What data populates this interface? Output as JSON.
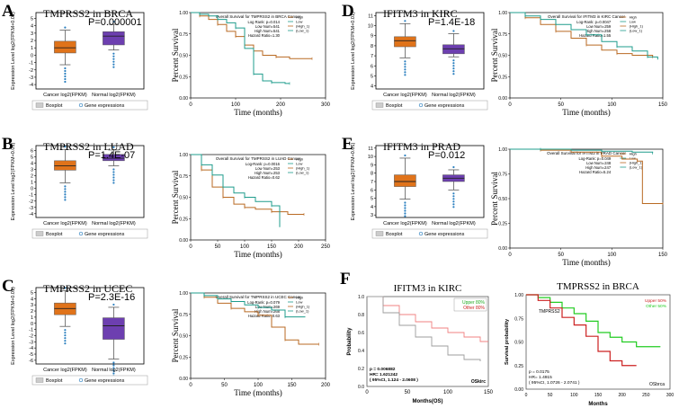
{
  "colors": {
    "cancer": "#e0731a",
    "normal": "#6d3fb0",
    "km_high": "#b96a23",
    "km_low": "#1f9c8c",
    "dot": "#2a7fbf",
    "probLow": "#f08080",
    "probHigh": "#9c9c9c",
    "kmRed": "#cc2020",
    "kmGreen": "#22cc22"
  },
  "panels": [
    {
      "letter": "A",
      "gene": "TMPRSS2",
      "tissue": "BRCA",
      "pvalue": "P=0.000001",
      "yticks": [
        -4,
        -3,
        -2,
        -1,
        0,
        1,
        2,
        3,
        4,
        5
      ],
      "ylim": [
        -4.6,
        5.8
      ],
      "cancer_box": {
        "q1": 0.3,
        "med": 1.0,
        "q3": 1.9,
        "lo": -1.3,
        "hi": 3.4
      },
      "normal_box": {
        "q1": 1.4,
        "med": 2.6,
        "q3": 3.2,
        "lo": 0.7,
        "hi": 4.2
      },
      "km": {
        "title": "Overall Survival for TMPRSS2 in BRCA Cancer",
        "stats": [
          "Log Rank: p=0.014",
          "Low Num=541",
          "High Num=541",
          "Hazard Ratio=1.30"
        ],
        "xticks": [
          0,
          100,
          200,
          300
        ],
        "xmax": 300,
        "high": [
          [
            0,
            1
          ],
          [
            20,
            0.96
          ],
          [
            40,
            0.92
          ],
          [
            60,
            0.86
          ],
          [
            80,
            0.78
          ],
          [
            100,
            0.72
          ],
          [
            120,
            0.62
          ],
          [
            140,
            0.55
          ],
          [
            160,
            0.5
          ],
          [
            190,
            0.48
          ],
          [
            220,
            0.46
          ],
          [
            270,
            0.46
          ]
        ],
        "low": [
          [
            0,
            1
          ],
          [
            20,
            0.98
          ],
          [
            40,
            0.96
          ],
          [
            60,
            0.92
          ],
          [
            80,
            0.88
          ],
          [
            100,
            0.82
          ],
          [
            120,
            0.58
          ],
          [
            140,
            0.28
          ],
          [
            160,
            0.2
          ],
          [
            180,
            0.18
          ],
          [
            210,
            0.17
          ],
          [
            220,
            0.17
          ]
        ]
      }
    },
    {
      "letter": "B",
      "gene": "TMPRSS2",
      "tissue": "LUAD",
      "pvalue": "P=1.4E-07",
      "yticks": [
        -4,
        -3,
        -2,
        -1,
        0,
        1,
        2,
        3,
        4,
        5,
        6
      ],
      "ylim": [
        -4.6,
        6.8
      ],
      "cancer_box": {
        "q1": 2.9,
        "med": 3.6,
        "q3": 4.4,
        "lo": 0.9,
        "hi": 6.2
      },
      "normal_box": {
        "q1": 4.4,
        "med": 4.8,
        "q3": 5.4,
        "lo": 3.6,
        "hi": 6.1
      },
      "km": {
        "title": "Overall Survival for TMPRSS2 in LUAD Cancer",
        "stats": [
          "Log-Rank: p=0.0016",
          "Low Num=253",
          "High Num=253",
          "Hazard Ratio=0.62"
        ],
        "xticks": [
          0,
          50,
          100,
          150,
          200,
          250
        ],
        "xmax": 250,
        "high": [
          [
            0,
            1
          ],
          [
            20,
            0.82
          ],
          [
            40,
            0.62
          ],
          [
            60,
            0.5
          ],
          [
            80,
            0.42
          ],
          [
            100,
            0.38
          ],
          [
            120,
            0.36
          ],
          [
            150,
            0.33
          ],
          [
            180,
            0.3
          ],
          [
            210,
            0.3
          ]
        ],
        "low": [
          [
            0,
            1
          ],
          [
            20,
            0.88
          ],
          [
            40,
            0.76
          ],
          [
            60,
            0.62
          ],
          [
            80,
            0.55
          ],
          [
            100,
            0.5
          ],
          [
            120,
            0.45
          ],
          [
            150,
            0.4
          ],
          [
            165,
            0.15
          ]
        ]
      }
    },
    {
      "letter": "C",
      "gene": "TMPRSS2",
      "tissue": "UCEC",
      "pvalue": "P=2.3E-16",
      "yticks": [
        -6,
        -5,
        -4,
        -3,
        -2,
        -1,
        0,
        1,
        2,
        3,
        4,
        5
      ],
      "ylim": [
        -6.6,
        5.8
      ],
      "cancer_box": {
        "q1": 1.4,
        "med": 2.4,
        "q3": 3.3,
        "lo": -0.5,
        "hi": 5.3
      },
      "normal_box": {
        "q1": -2.6,
        "med": -0.4,
        "q3": 0.9,
        "lo": -5.8,
        "hi": 2.6
      },
      "km": {
        "title": "Overall Survival for TMPRSS2 in UCEC Cancer",
        "stats": [
          "Log-Rank: p=0.079",
          "Low Num=269",
          "High Num=268",
          "Hazard Ratio=0.63"
        ],
        "xticks": [
          0,
          50,
          100,
          150,
          200
        ],
        "xmax": 200,
        "high": [
          [
            0,
            1
          ],
          [
            20,
            0.95
          ],
          [
            40,
            0.88
          ],
          [
            60,
            0.82
          ],
          [
            80,
            0.78
          ],
          [
            100,
            0.74
          ],
          [
            120,
            0.6
          ],
          [
            140,
            0.45
          ],
          [
            160,
            0.4
          ],
          [
            190,
            0.4
          ]
        ],
        "low": [
          [
            0,
            1
          ],
          [
            20,
            0.97
          ],
          [
            40,
            0.93
          ],
          [
            60,
            0.9
          ],
          [
            80,
            0.86
          ],
          [
            100,
            0.83
          ],
          [
            120,
            0.8
          ],
          [
            140,
            0.72
          ],
          [
            170,
            0.72
          ]
        ]
      }
    },
    {
      "letter": "D",
      "gene": "IFITM3",
      "tissue": "KIRC",
      "pvalue": "P=1.4E-18",
      "yticks": [
        4,
        5,
        6,
        7,
        8,
        9,
        10,
        11
      ],
      "ylim": [
        3.7,
        11.3
      ],
      "cancer_box": {
        "q1": 7.9,
        "med": 8.5,
        "q3": 8.9,
        "lo": 6.8,
        "hi": 10.2
      },
      "normal_box": {
        "q1": 7.2,
        "med": 7.7,
        "q3": 8.1,
        "lo": 6.9,
        "hi": 9.2
      },
      "km": {
        "title": "Overall Survival for IFITM3 in KIRC Cancer",
        "stats": [
          "Log-Rank: p=0.0047",
          "Low Num=259",
          "High Num=258",
          "Hazard Ratio=1.55"
        ],
        "xticks": [
          0,
          50,
          100,
          150
        ],
        "xmax": 150,
        "high": [
          [
            0,
            1
          ],
          [
            15,
            0.94
          ],
          [
            30,
            0.86
          ],
          [
            45,
            0.78
          ],
          [
            60,
            0.7
          ],
          [
            75,
            0.62
          ],
          [
            90,
            0.56
          ],
          [
            105,
            0.52
          ],
          [
            120,
            0.5
          ],
          [
            140,
            0.48
          ]
        ],
        "low": [
          [
            0,
            1
          ],
          [
            15,
            0.96
          ],
          [
            30,
            0.92
          ],
          [
            45,
            0.86
          ],
          [
            60,
            0.8
          ],
          [
            75,
            0.74
          ],
          [
            90,
            0.66
          ],
          [
            105,
            0.6
          ],
          [
            120,
            0.55
          ],
          [
            135,
            0.48
          ],
          [
            145,
            0.45
          ]
        ]
      }
    },
    {
      "letter": "E",
      "gene": "IFITM3",
      "tissue": "PRAD",
      "pvalue": "P=0.012",
      "yticks": [
        3,
        4,
        5,
        6,
        7,
        8,
        9,
        10,
        11
      ],
      "ylim": [
        2.7,
        11.3
      ],
      "cancer_box": {
        "q1": 6.4,
        "med": 7.0,
        "q3": 7.8,
        "lo": 4.9,
        "hi": 9.8
      },
      "normal_box": {
        "q1": 7.0,
        "med": 7.4,
        "q3": 7.8,
        "lo": 6.0,
        "hi": 8.4
      },
      "km": {
        "title": "Overall Survival for IFITM3 in PRAD Cancer",
        "stats": [
          "Log-Rank: p=0.049",
          "Low Num=248",
          "High Num=247",
          "Hazard Ratio=5.24"
        ],
        "xticks": [
          0,
          50,
          100,
          150
        ],
        "xmax": 150,
        "high": [
          [
            0,
            1
          ],
          [
            30,
            0.99
          ],
          [
            60,
            0.97
          ],
          [
            90,
            0.93
          ],
          [
            110,
            0.9
          ],
          [
            125,
            0.88
          ],
          [
            130,
            0.45
          ],
          [
            150,
            0.45
          ]
        ],
        "low": [
          [
            0,
            1
          ],
          [
            30,
            1
          ],
          [
            60,
            0.99
          ],
          [
            90,
            0.98
          ],
          [
            120,
            0.97
          ],
          [
            140,
            0.96
          ]
        ]
      }
    }
  ],
  "boxplot_common": {
    "ylabel": "Expression Level log2(FPKM+0.01)",
    "cancer_label": "Cancer log2(FPKM)",
    "normal_label": "Normal log2(FPKM)",
    "legend_boxplot": "Boxplot",
    "legend_gene": "Gene expressions"
  },
  "km_common": {
    "ylabel": "Percent Survival",
    "xlabel": "Time (months)",
    "yticks": [
      "0.00",
      "0.25",
      "0.50",
      "0.75",
      "1.00"
    ],
    "legend": [
      "High",
      "Low",
      "(High_1)",
      "(Low_1)"
    ]
  },
  "panelF": {
    "letter": "F",
    "left": {
      "title": "IFITM3  in KIRC",
      "ylabel": "Probability",
      "xlabel": "Months(OS)",
      "yticks": [
        "0.0",
        "0.2",
        "0.4",
        "0.6",
        "0.8",
        "1.0"
      ],
      "xticks": [
        "0",
        "50",
        "100",
        "150"
      ],
      "legend_upper": "Upper 80%",
      "legend_other": "Other 80%",
      "stats": [
        "p = 0.006882",
        "HR= 1.621242",
        "( 95%CI, 1.124 - 2.0608 )"
      ],
      "corner": "OSkirc",
      "low": [
        [
          0,
          1
        ],
        [
          20,
          0.9
        ],
        [
          40,
          0.8
        ],
        [
          60,
          0.72
        ],
        [
          80,
          0.65
        ],
        [
          100,
          0.6
        ],
        [
          120,
          0.55
        ],
        [
          140,
          0.5
        ],
        [
          150,
          0.5
        ]
      ],
      "high": [
        [
          0,
          1
        ],
        [
          20,
          0.82
        ],
        [
          40,
          0.68
        ],
        [
          60,
          0.55
        ],
        [
          80,
          0.45
        ],
        [
          100,
          0.35
        ],
        [
          120,
          0.3
        ],
        [
          140,
          0.28
        ]
      ]
    },
    "right": {
      "title": "TMPRSS2  in BRCA",
      "ylabel": "Survival probability",
      "xlabel": "Months",
      "yticks": [
        "0.00",
        "0.25",
        "0.50",
        "0.75",
        "1.00"
      ],
      "xticks": [
        "0",
        "50",
        "100",
        "150",
        "200",
        "250",
        "300"
      ],
      "legend_upper": "Upper 50%",
      "legend_other": "Other 50%",
      "gene": "TMPRSS2",
      "stats": [
        "p = 0.0175",
        "HR= 1.4915",
        "( 95%CI, 1.0726 - 2.0741 )"
      ],
      "corner": "OSbrca",
      "red": [
        [
          0,
          1
        ],
        [
          25,
          0.94
        ],
        [
          50,
          0.86
        ],
        [
          75,
          0.76
        ],
        [
          100,
          0.68
        ],
        [
          125,
          0.56
        ],
        [
          150,
          0.4
        ],
        [
          175,
          0.3
        ],
        [
          200,
          0.25
        ],
        [
          230,
          0.25
        ]
      ],
      "green": [
        [
          0,
          1
        ],
        [
          25,
          0.97
        ],
        [
          50,
          0.92
        ],
        [
          75,
          0.86
        ],
        [
          100,
          0.8
        ],
        [
          125,
          0.72
        ],
        [
          150,
          0.6
        ],
        [
          175,
          0.55
        ],
        [
          200,
          0.5
        ],
        [
          230,
          0.45
        ],
        [
          280,
          0.45
        ]
      ]
    }
  }
}
